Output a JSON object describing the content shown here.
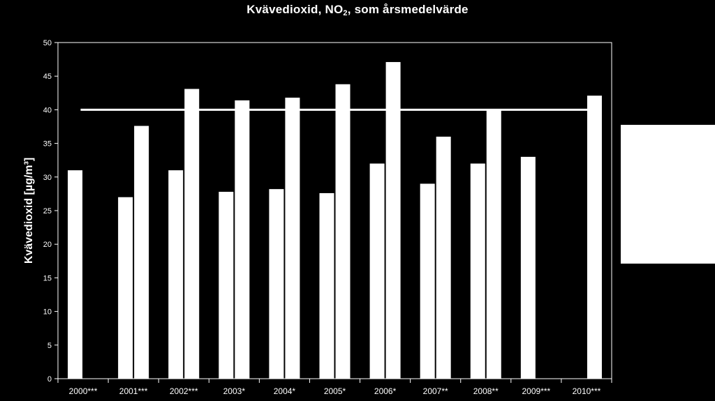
{
  "chart_data": {
    "type": "bar",
    "title": {
      "main": "Kvävedioxid, NO",
      "sub": "2",
      "rest": ", som årsmedelvärde"
    },
    "ylabel": "Kvävedioxid [µg/m³]",
    "xlabel": "",
    "ylim": [
      0,
      50
    ],
    "yticks": [
      0,
      5,
      10,
      15,
      20,
      25,
      30,
      35,
      40,
      45,
      50
    ],
    "categories": [
      "2000***",
      "2001***",
      "2002***",
      "2003*",
      "2004*",
      "2005*",
      "2006*",
      "2007**",
      "2008**",
      "2009***",
      "2010***"
    ],
    "series": [
      {
        "values": [
          31,
          27,
          31,
          27.8,
          28.2,
          27.6,
          32,
          29,
          32,
          33,
          null
        ]
      },
      {
        "values": [
          null,
          37.6,
          43.1,
          41.4,
          41.8,
          43.8,
          47.1,
          36,
          40,
          null,
          42.1
        ]
      }
    ],
    "reference_line": {
      "value": 40,
      "color": "#ffffff"
    },
    "bar_color": "#ffffff",
    "background": "#000000",
    "legend": {
      "position": "right",
      "entries": []
    }
  }
}
